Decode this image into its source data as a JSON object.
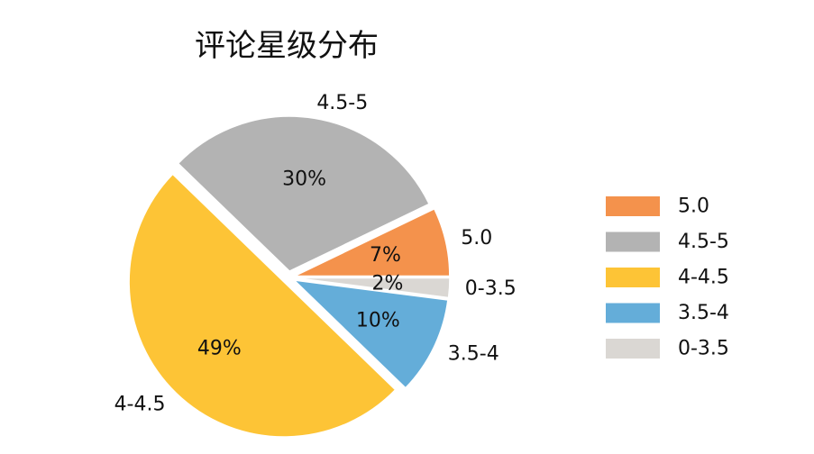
{
  "chart_data": {
    "type": "pie",
    "title": "评论星级分布",
    "categories": [
      "5.0",
      "4.5-5",
      "4-4.5",
      "3.5-4",
      "0-3.5"
    ],
    "values": [
      7,
      30,
      49,
      10,
      2
    ],
    "percent_labels": [
      "7%",
      "30%",
      "49%",
      "10%",
      "2%"
    ],
    "colors": [
      "#F4924C",
      "#B3B3B3",
      "#FDC436",
      "#64ADD9",
      "#DAD7D3"
    ],
    "legend": {
      "position": "right",
      "entries": [
        "5.0",
        "4.5-5",
        "4-4.5",
        "3.5-4",
        "0-3.5"
      ]
    },
    "start_angle_deg": 0,
    "direction": "counterclockwise",
    "exploded": true
  }
}
